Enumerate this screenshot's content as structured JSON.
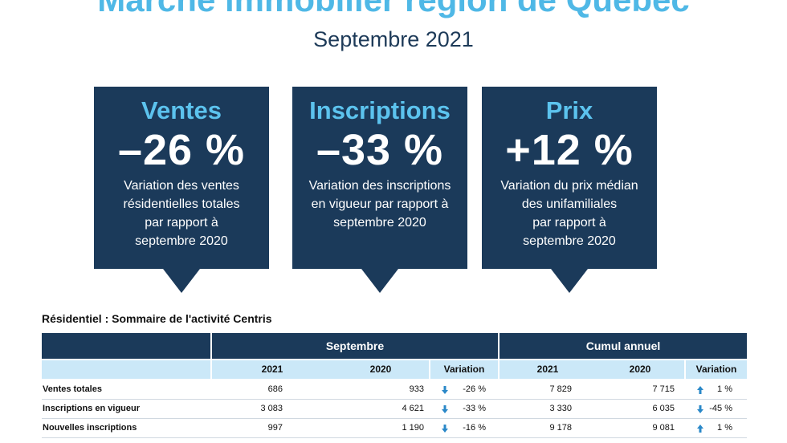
{
  "header": {
    "title": "Marché immobilier région de Québec",
    "subtitle": "Septembre 2021"
  },
  "cards": [
    {
      "heading": "Ventes",
      "value": "–26 %",
      "description": [
        "Variation des ventes",
        "résidentielles totales",
        "par rapport à",
        "septembre 2020"
      ]
    },
    {
      "heading": "Inscriptions",
      "value": "–33 %",
      "description": [
        "Variation des inscriptions",
        "en vigueur par rapport à",
        "septembre 2020"
      ]
    },
    {
      "heading": "Prix",
      "value": "+12 %",
      "description": [
        "Variation du prix médian",
        "des unifamiliales",
        "par rapport à",
        "septembre 2020"
      ]
    }
  ],
  "table": {
    "title": "Résidentiel : Sommaire de l'activité Centris",
    "groups": [
      "Septembre",
      "Cumul annuel"
    ],
    "columns": [
      "2021",
      "2020",
      "Variation",
      "2021",
      "2020",
      "Variation"
    ],
    "rows": [
      [
        "Ventes totales",
        "686",
        "933",
        "-26 %",
        "7 829",
        "7 715",
        "1 %"
      ],
      [
        "Inscriptions en vigueur",
        "3 083",
        "4 621",
        "-33 %",
        "3 330",
        "6 035",
        "-45 %"
      ],
      [
        "Nouvelles inscriptions",
        "997",
        "1 190",
        "-16 %",
        "9 178",
        "9 081",
        "1 %"
      ]
    ]
  }
}
